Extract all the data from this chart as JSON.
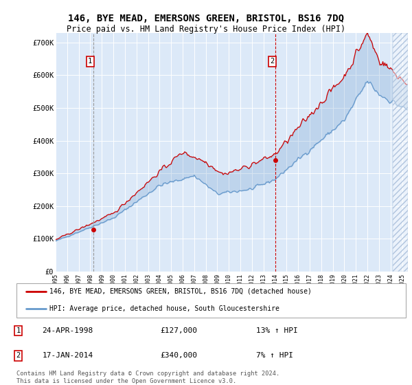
{
  "title1": "146, BYE MEAD, EMERSONS GREEN, BRISTOL, BS16 7DQ",
  "title2": "Price paid vs. HM Land Registry's House Price Index (HPI)",
  "legend_line1": "146, BYE MEAD, EMERSONS GREEN, BRISTOL, BS16 7DQ (detached house)",
  "legend_line2": "HPI: Average price, detached house, South Gloucestershire",
  "annotation1": {
    "label": "1",
    "date": "24-APR-1998",
    "price": "£127,000",
    "hpi": "13% ↑ HPI",
    "x_year": 1998.29,
    "y_val": 127000
  },
  "annotation2": {
    "label": "2",
    "date": "17-JAN-2014",
    "price": "£340,000",
    "hpi": "7% ↑ HPI",
    "x_year": 2014.05,
    "y_val": 340000
  },
  "vline1_x": 1998.29,
  "vline2_x": 2014.05,
  "ylabel_ticks": [
    "£0",
    "£100K",
    "£200K",
    "£300K",
    "£400K",
    "£500K",
    "£600K",
    "£700K"
  ],
  "ytick_vals": [
    0,
    100000,
    200000,
    300000,
    400000,
    500000,
    600000,
    700000
  ],
  "ylim": [
    0,
    730000
  ],
  "xlim_start": 1995.0,
  "xlim_end": 2025.5,
  "background_color": "#dce9f8",
  "footer": "Contains HM Land Registry data © Crown copyright and database right 2024.\nThis data is licensed under the Open Government Licence v3.0.",
  "red_line_color": "#cc0000",
  "blue_line_color": "#6699cc",
  "hatch_start": 2024.17
}
